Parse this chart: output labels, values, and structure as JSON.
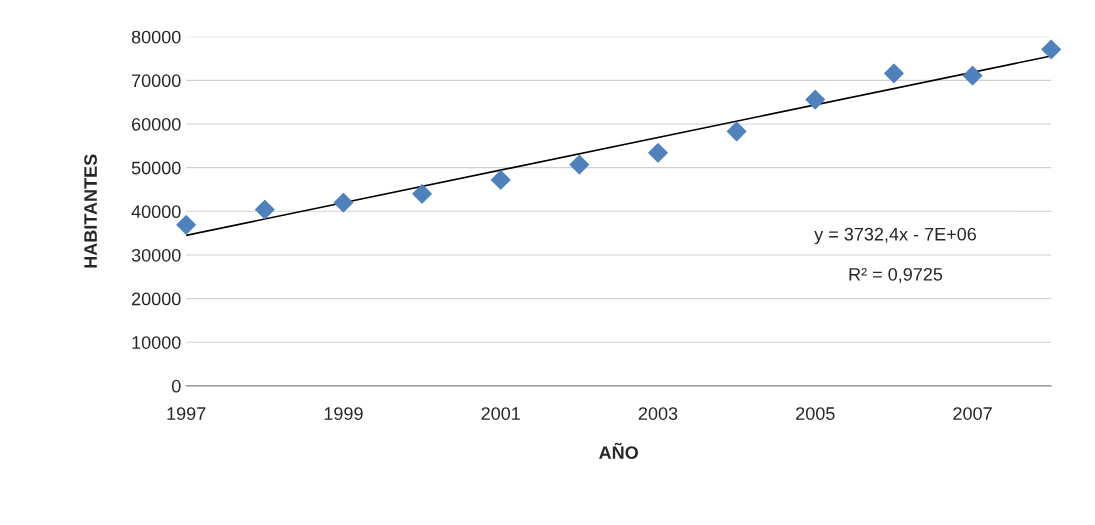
{
  "chart_data": {
    "type": "scatter",
    "xlabel": "AÑO",
    "ylabel": "HABITANTES",
    "x": [
      1997,
      1998,
      1999,
      2000,
      2001,
      2002,
      2003,
      2004,
      2005,
      2006,
      2007,
      2008
    ],
    "series": [
      {
        "color": "#4f81bd",
        "marker": "diamond",
        "values": [
          36900,
          40400,
          42000,
          44000,
          47200,
          50700,
          53400,
          58300,
          65600,
          71600,
          71100,
          77100
        ]
      },
      {
        "type": "line",
        "color": "#000000",
        "marker": "none",
        "line_style": "solid",
        "x": [
          1997,
          2008
        ],
        "values": [
          34500,
          75600
        ]
      }
    ],
    "annotations": [
      "y = 3732,4x - 7E+06",
      "R² = 0,9725"
    ],
    "xlim": [
      1997,
      2008
    ],
    "xticks": [
      1997,
      1999,
      2001,
      2003,
      2005,
      2007
    ],
    "ylim": [
      0,
      80000
    ],
    "yticks": [
      0,
      10000,
      20000,
      30000,
      40000,
      50000,
      60000,
      70000,
      80000
    ],
    "grid": "y",
    "legend": false
  }
}
